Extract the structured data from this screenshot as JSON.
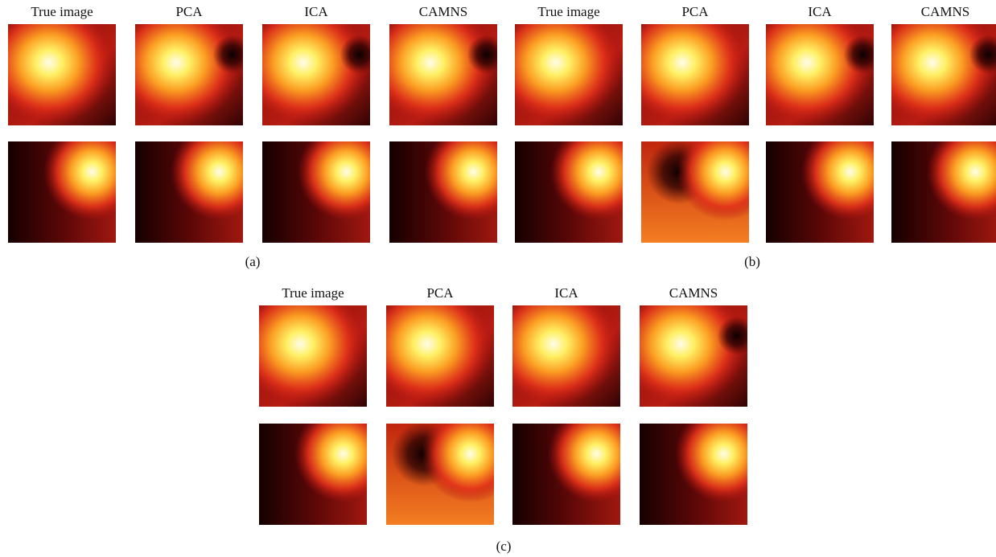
{
  "panels": [
    {
      "columns": [
        "True image",
        "PCA",
        "ICA",
        "CAMNS"
      ],
      "caption": "(a)"
    },
    {
      "columns": [
        "True image",
        "PCA",
        "ICA",
        "CAMNS"
      ],
      "caption": "(b)"
    },
    {
      "columns": [
        "True image",
        "PCA",
        "ICA",
        "CAMNS"
      ],
      "caption": "(c)"
    }
  ]
}
